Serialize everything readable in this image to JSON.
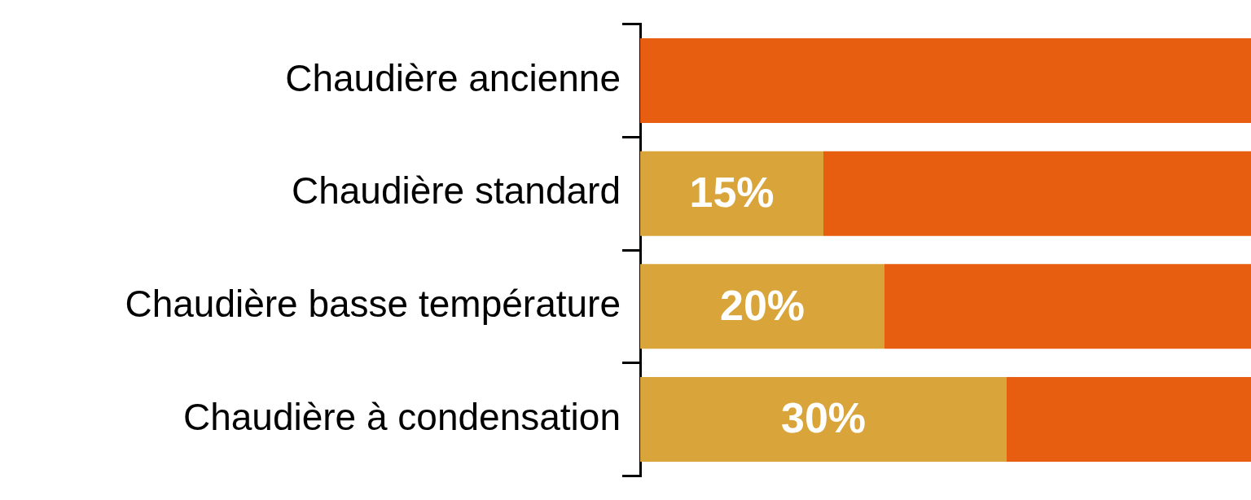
{
  "chart_data": {
    "type": "bar",
    "orientation": "horizontal",
    "stacked": true,
    "categories": [
      "Chaudière ancienne",
      "Chaudière standard",
      "Chaudière basse température",
      "Chaudière à condensation"
    ],
    "series": [
      {
        "color": "#d9a43a",
        "values": [
          null,
          15,
          20,
          30
        ],
        "value_labels": [
          null,
          "15%",
          "20%",
          "30%"
        ]
      },
      {
        "color": "#e85e10",
        "values": [
          50,
          35,
          30,
          20
        ]
      }
    ],
    "xlim": [
      0,
      50
    ],
    "tick_labels": "y",
    "legend": false
  }
}
